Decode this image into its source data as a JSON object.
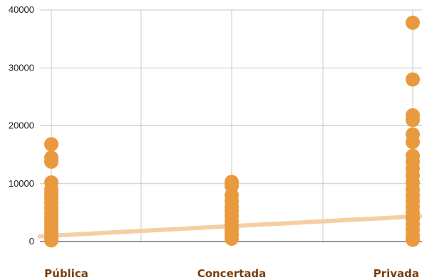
{
  "chart_data": {
    "type": "scatter",
    "categories": [
      "Pública",
      "Concertada",
      "Privada"
    ],
    "ylim": [
      0,
      40000
    ],
    "yticks": [
      0,
      10000,
      20000,
      30000,
      40000
    ],
    "grid": true,
    "colors": {
      "points": "#ea9a3e",
      "trend": "#f5cfa3",
      "grid": "#c9c9c9",
      "axis": "#333333",
      "category_label": "#7a3e0c"
    },
    "series": [
      {
        "values": [
          {
            "x": "Pública",
            "y": 16800
          },
          {
            "x": "Pública",
            "y": 14500
          },
          {
            "x": "Pública",
            "y": 13800
          },
          {
            "x": "Pública",
            "y": 10200
          },
          {
            "x": "Pública",
            "y": 9000
          },
          {
            "x": "Pública",
            "y": 8200
          },
          {
            "x": "Pública",
            "y": 7400
          },
          {
            "x": "Pública",
            "y": 6600
          },
          {
            "x": "Pública",
            "y": 5800
          },
          {
            "x": "Pública",
            "y": 5000
          },
          {
            "x": "Pública",
            "y": 4300
          },
          {
            "x": "Pública",
            "y": 3600
          },
          {
            "x": "Pública",
            "y": 2900
          },
          {
            "x": "Pública",
            "y": 2200
          },
          {
            "x": "Pública",
            "y": 1500
          },
          {
            "x": "Pública",
            "y": 800
          },
          {
            "x": "Pública",
            "y": 200
          },
          {
            "x": "Concertada",
            "y": 10300
          },
          {
            "x": "Concertada",
            "y": 9600
          },
          {
            "x": "Concertada",
            "y": 8000
          },
          {
            "x": "Concertada",
            "y": 7000
          },
          {
            "x": "Concertada",
            "y": 6000
          },
          {
            "x": "Concertada",
            "y": 5200
          },
          {
            "x": "Concertada",
            "y": 4400
          },
          {
            "x": "Concertada",
            "y": 3600
          },
          {
            "x": "Concertada",
            "y": 2800
          },
          {
            "x": "Concertada",
            "y": 2000
          },
          {
            "x": "Concertada",
            "y": 1200
          },
          {
            "x": "Concertada",
            "y": 500
          },
          {
            "x": "Privada",
            "y": 37800
          },
          {
            "x": "Privada",
            "y": 28000
          },
          {
            "x": "Privada",
            "y": 21800
          },
          {
            "x": "Privada",
            "y": 21000
          },
          {
            "x": "Privada",
            "y": 18500
          },
          {
            "x": "Privada",
            "y": 17200
          },
          {
            "x": "Privada",
            "y": 14800
          },
          {
            "x": "Privada",
            "y": 13800
          },
          {
            "x": "Privada",
            "y": 12600
          },
          {
            "x": "Privada",
            "y": 11400
          },
          {
            "x": "Privada",
            "y": 10200
          },
          {
            "x": "Privada",
            "y": 9000
          },
          {
            "x": "Privada",
            "y": 8000
          },
          {
            "x": "Privada",
            "y": 7000
          },
          {
            "x": "Privada",
            "y": 6000
          },
          {
            "x": "Privada",
            "y": 5000
          },
          {
            "x": "Privada",
            "y": 4000
          },
          {
            "x": "Privada",
            "y": 3000
          },
          {
            "x": "Privada",
            "y": 2000
          },
          {
            "x": "Privada",
            "y": 1000
          },
          {
            "x": "Privada",
            "y": 300
          }
        ]
      }
    ],
    "trendline": {
      "start": 900,
      "end": 4400
    }
  }
}
